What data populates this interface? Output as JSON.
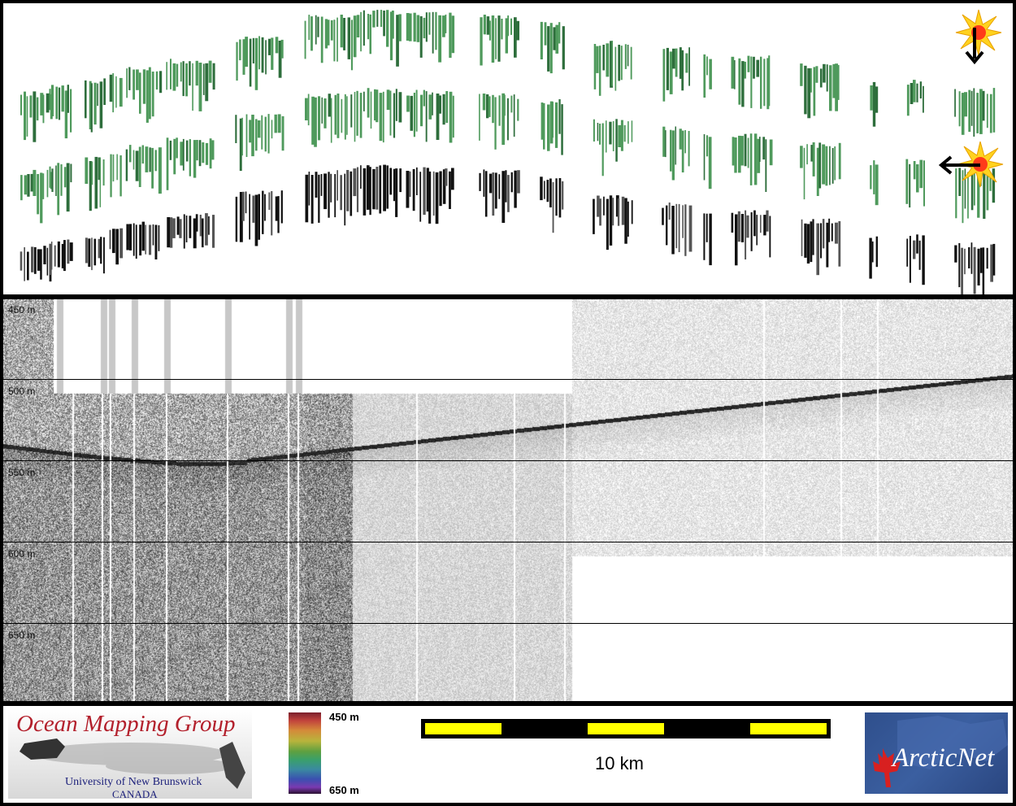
{
  "depth_labels": [
    "450 m",
    "500 m",
    "550 m",
    "600 m",
    "650 m"
  ],
  "legend": {
    "org_name": "Ocean Mapping Group",
    "university": "University of New Brunswick",
    "country": "CANADA",
    "colorbar_top": "450 m",
    "colorbar_bottom": "650 m",
    "scale_label": "10 km",
    "partner_name": "ArcticNet"
  },
  "colors": {
    "swath_green": "#4a9a5a",
    "scale_yellow": "#ffff00",
    "omg_red": "#b3202c",
    "omg_blue": "#1b1f7a"
  },
  "icons": [
    "sun-light-icon",
    "arrow-down-icon",
    "arrow-left-icon"
  ]
}
